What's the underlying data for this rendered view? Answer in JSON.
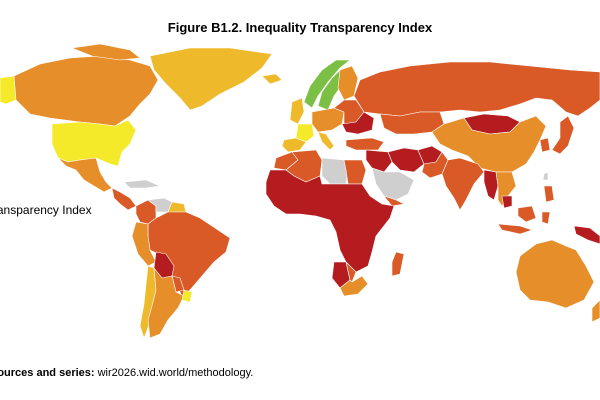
{
  "figure": {
    "title": "Figure B1.2. Inequality Transparency Index",
    "legend_label": "Transparency Index",
    "source_prefix": "Sources and series: ",
    "source_url": "wir2026.wid.world/methodology."
  },
  "colors": {
    "very_high": "#f5ea2a",
    "high": "#eeba2c",
    "medium_high": "#e68f2a",
    "medium": "#d95a26",
    "low": "#b51c1f",
    "excellent": "#7cbf45",
    "no_data": "#cfcfcf",
    "ocean": "#ffffff",
    "border": "#ffffff"
  },
  "regions": [
    {
      "name": "Alaska",
      "category": "very_high"
    },
    {
      "name": "Canada",
      "category": "medium_high"
    },
    {
      "name": "Greenland",
      "category": "high"
    },
    {
      "name": "United States",
      "category": "very_high"
    },
    {
      "name": "Mexico",
      "category": "medium_high"
    },
    {
      "name": "Central America",
      "category": "medium"
    },
    {
      "name": "Caribbean",
      "category": "no_data"
    },
    {
      "name": "Colombia",
      "category": "medium"
    },
    {
      "name": "Venezuela",
      "category": "no_data"
    },
    {
      "name": "Guyana",
      "category": "high"
    },
    {
      "name": "Brazil",
      "category": "medium"
    },
    {
      "name": "Peru",
      "category": "medium_high"
    },
    {
      "name": "Bolivia",
      "category": "low"
    },
    {
      "name": "Paraguay",
      "category": "medium"
    },
    {
      "name": "Chile",
      "category": "high"
    },
    {
      "name": "Argentina",
      "category": "medium_high"
    },
    {
      "name": "Uruguay",
      "category": "very_high"
    },
    {
      "name": "Iceland",
      "category": "high"
    },
    {
      "name": "Norway",
      "category": "excellent"
    },
    {
      "name": "Sweden",
      "category": "excellent"
    },
    {
      "name": "Finland",
      "category": "medium_high"
    },
    {
      "name": "United Kingdom",
      "category": "high"
    },
    {
      "name": "France",
      "category": "very_high"
    },
    {
      "name": "Iberia",
      "category": "high"
    },
    {
      "name": "Central Europe",
      "category": "medium_high"
    },
    {
      "name": "Italy",
      "category": "high"
    },
    {
      "name": "Eastern Europe",
      "category": "medium"
    },
    {
      "name": "Ukraine",
      "category": "low"
    },
    {
      "name": "Turkey",
      "category": "medium"
    },
    {
      "name": "Russia",
      "category": "medium"
    },
    {
      "name": "Kazakhstan",
      "category": "medium"
    },
    {
      "name": "Mongolia",
      "category": "low"
    },
    {
      "name": "China",
      "category": "medium_high"
    },
    {
      "name": "Korea",
      "category": "medium"
    },
    {
      "name": "Japan",
      "category": "medium"
    },
    {
      "name": "Taiwan",
      "category": "no_data"
    },
    {
      "name": "Iran",
      "category": "low"
    },
    {
      "name": "Afghanistan",
      "category": "low"
    },
    {
      "name": "Pakistan",
      "category": "medium"
    },
    {
      "name": "India",
      "category": "medium"
    },
    {
      "name": "Myanmar",
      "category": "low"
    },
    {
      "name": "Southeast Asia",
      "category": "medium_high"
    },
    {
      "name": "Cambodia",
      "category": "low"
    },
    {
      "name": "Indonesia",
      "category": "medium"
    },
    {
      "name": "Philippines",
      "category": "medium"
    },
    {
      "name": "Papua New Guinea",
      "category": "low"
    },
    {
      "name": "Arabian Peninsula",
      "category": "no_data"
    },
    {
      "name": "Yemen",
      "category": "medium"
    },
    {
      "name": "Iraq Syria",
      "category": "low"
    },
    {
      "name": "Morocco",
      "category": "medium"
    },
    {
      "name": "Algeria",
      "category": "medium"
    },
    {
      "name": "Libya",
      "category": "no_data"
    },
    {
      "name": "Egypt",
      "category": "medium"
    },
    {
      "name": "Sub-Saharan Africa",
      "category": "low"
    },
    {
      "name": "Namibia",
      "category": "low"
    },
    {
      "name": "South Africa",
      "category": "medium_high"
    },
    {
      "name": "Botswana",
      "category": "medium"
    },
    {
      "name": "Madagascar",
      "category": "medium"
    },
    {
      "name": "Australia",
      "category": "medium_high"
    },
    {
      "name": "New Zealand",
      "category": "medium_high"
    }
  ]
}
